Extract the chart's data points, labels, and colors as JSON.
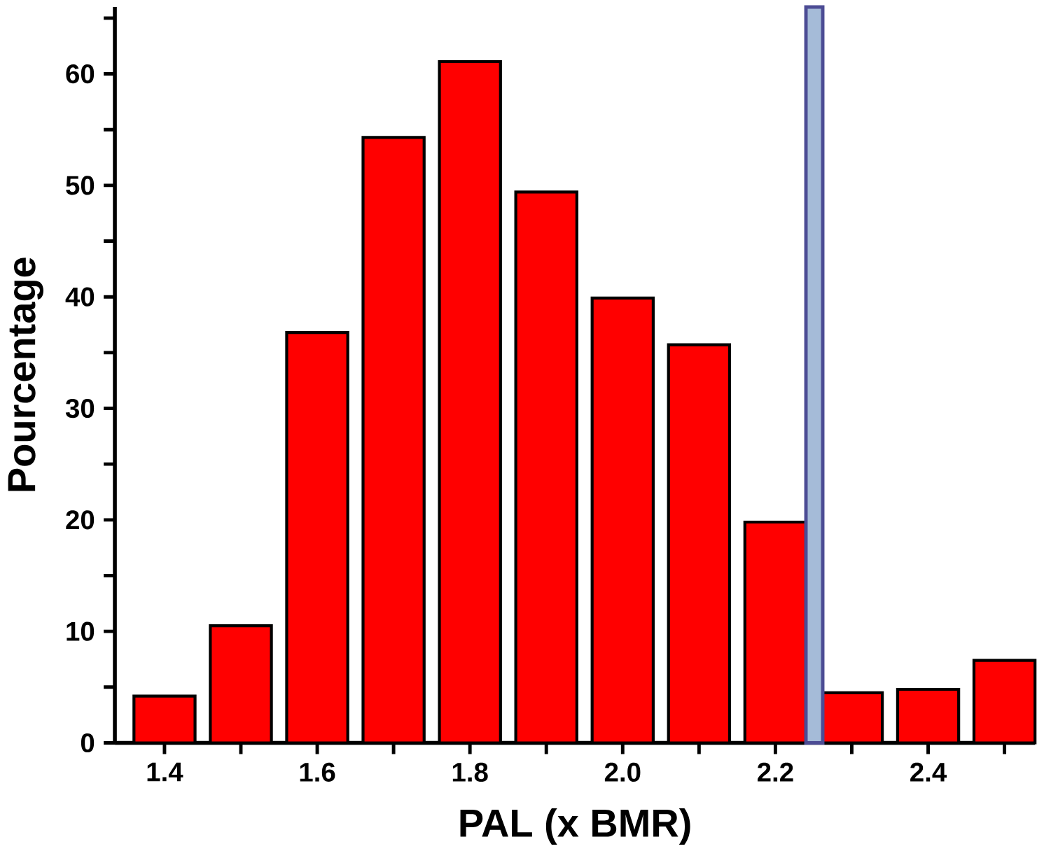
{
  "chart_data": {
    "type": "bar",
    "xlabel": "PAL (x BMR)",
    "ylabel": "Pourcentage",
    "x": [
      1.4,
      1.5,
      1.6,
      1.7,
      1.8,
      1.9,
      2.0,
      2.1,
      2.2,
      2.3,
      2.4,
      2.5
    ],
    "values": [
      4.2,
      10.5,
      36.8,
      54.3,
      61.1,
      49.4,
      39.9,
      35.7,
      19.8,
      4.5,
      4.8,
      7.4
    ],
    "color": "#ff0000",
    "xlim": [
      1.335,
      2.54
    ],
    "ylim": [
      0,
      66
    ],
    "xticks": [
      {
        "value": 1.4,
        "label": "1.4"
      },
      {
        "value": 1.5,
        "label": null
      },
      {
        "value": 1.6,
        "label": "1.6"
      },
      {
        "value": 1.7,
        "label": null
      },
      {
        "value": 1.8,
        "label": "1.8"
      },
      {
        "value": 1.9,
        "label": null
      },
      {
        "value": 2.0,
        "label": "2.0"
      },
      {
        "value": 2.1,
        "label": null
      },
      {
        "value": 2.2,
        "label": "2.2"
      },
      {
        "value": 2.3,
        "label": null
      },
      {
        "value": 2.4,
        "label": "2.4"
      },
      {
        "value": 2.5,
        "label": null
      }
    ],
    "yticks": [
      0,
      {
        "value": 5,
        "label": null
      },
      10,
      {
        "value": 15,
        "label": null
      },
      20,
      {
        "value": 25,
        "label": null
      },
      30,
      {
        "value": 35,
        "label": null
      },
      40,
      {
        "value": 45,
        "label": null
      },
      50,
      {
        "value": 55,
        "label": null
      },
      60,
      {
        "value": 65,
        "label": null
      }
    ],
    "bands": [
      {
        "axis": "x",
        "from": 2.24,
        "to": 2.262,
        "color": "#a5bbd8"
      }
    ],
    "grid": false
  }
}
